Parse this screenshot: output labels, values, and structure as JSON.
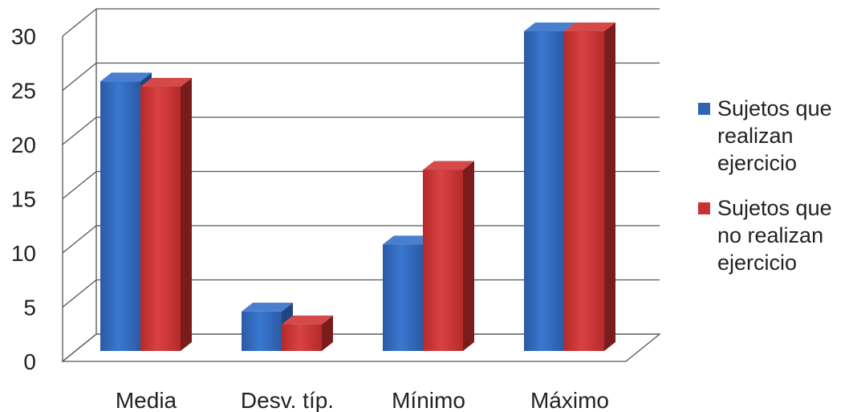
{
  "chart_data": {
    "type": "bar",
    "title": "",
    "xlabel": "",
    "ylabel": "",
    "categories": [
      "Media",
      "Desv. típ.",
      "Mínimo",
      "Máximo"
    ],
    "series": [
      {
        "name": "Sujetos que realizan ejercicio",
        "values": [
          25.3,
          3.7,
          10,
          30
        ]
      },
      {
        "name": "Sujetos que no realizan ejercicio",
        "values": [
          24.8,
          2.5,
          17,
          30
        ]
      }
    ],
    "yticks": [
      "0",
      "5",
      "10",
      "15",
      "20",
      "25",
      "30"
    ],
    "ylim": [
      0,
      30
    ],
    "grid": true,
    "legend_position": "right",
    "colors": [
      "#2E64B6",
      "#C83232"
    ]
  }
}
